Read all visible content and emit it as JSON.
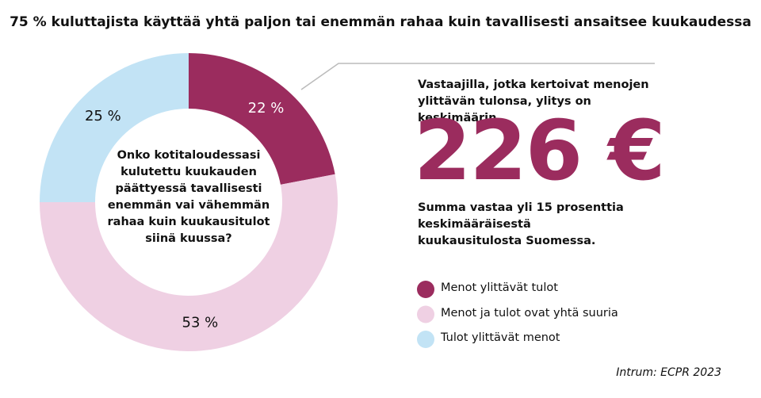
{
  "chart_data": {
    "type": "donut",
    "title": "75 % kuluttajista käyttää yhtä paljon tai enemmän rahaa kuin tavallisesti ansaitsee kuukaudessa",
    "center_text": "Onko kotitaloudessasi kulutettu kuukauden päättyessä tavallisesti enemmän vai vähemmän rahaa kuin kuukausitulot siinä kuussa?",
    "categories": [
      "Menot ylittävät tulot",
      "Menot ja tulot ovat yhtä suuria",
      "Tulot ylittävät menot"
    ],
    "values": [
      22,
      53,
      25
    ],
    "value_labels": [
      "22 %",
      "53 %",
      "25 %"
    ],
    "colors": [
      "#9b2c5e",
      "#efd0e3",
      "#c2e3f5"
    ],
    "annotations": [
      "Vastaajilla, jotka kertoivat menojen ylittävän tulonsa, ylitys on keskimäärin",
      "226 €",
      "Summa vastaa yli 15 prosenttia keskimääräisestä kuukausitulosta Suomessa."
    ],
    "source": "Intrum: ECPR 2023"
  }
}
